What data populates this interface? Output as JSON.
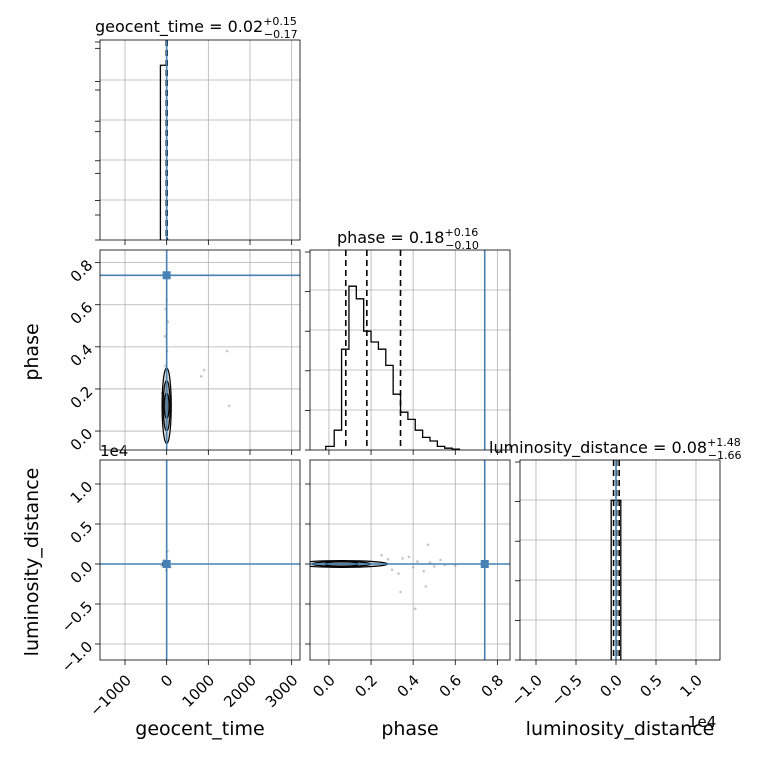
{
  "colors": {
    "truth": "#4682b4",
    "hist": "#000000",
    "grid": "#b0b0b0",
    "scatter": "#999999",
    "contour_fill": "#8c8c8c"
  },
  "chart_data": {
    "type": "corner",
    "grid": true,
    "parameters": [
      "geocent_time",
      "phase",
      "luminosity_distance"
    ],
    "ranges": {
      "geocent_time": [
        -1600,
        3200
      ],
      "phase": [
        -0.09,
        0.86
      ],
      "luminosity_distance": [
        -12000,
        13000
      ]
    },
    "truths": {
      "geocent_time": 0,
      "phase": 0.74,
      "luminosity_distance": 0
    },
    "titles": [
      {
        "param": "geocent_time",
        "prefix": "geocent_time = ",
        "value": "0.02",
        "plus": "+0.15",
        "minus": "−0.17"
      },
      {
        "param": "phase",
        "prefix": "phase = ",
        "value": "0.18",
        "plus": "+0.16",
        "minus": "−0.10"
      },
      {
        "param": "luminosity_distance",
        "prefix": "luminosity_distance = ",
        "value": "0.08",
        "plus": "+1.48",
        "minus": "−1.66"
      }
    ],
    "axis_labels": {
      "x": [
        "geocent_time",
        "phase",
        "luminosity_distance"
      ],
      "y": [
        "phase",
        "luminosity_distance"
      ]
    },
    "offset_labels": {
      "luminosity_distance_y": "1e4",
      "luminosity_distance_x": "1e4"
    },
    "ticks": {
      "geocent_time": {
        "values": [
          -1000,
          0,
          1000,
          2000,
          3000
        ],
        "labels": [
          "−1000",
          "0",
          "1000",
          "2000",
          "3000"
        ]
      },
      "phase": {
        "values": [
          0.0,
          0.2,
          0.4,
          0.6,
          0.8
        ],
        "labels": [
          "0.0",
          "0.2",
          "0.4",
          "0.6",
          "0.8"
        ]
      },
      "luminosity_distance": {
        "values": [
          -10000,
          -5000,
          0,
          5000,
          10000
        ],
        "labels": [
          "−1.0",
          "−0.5",
          "0.0",
          "0.5",
          "1.0"
        ]
      }
    },
    "quantile_lines": {
      "geocent_time": [
        -0.15,
        0.02,
        0.17
      ],
      "phase": [
        0.08,
        0.18,
        0.34
      ],
      "luminosity_distance": [
        -1.58,
        0.08,
        1.56
      ]
    },
    "histograms": {
      "geocent_time": {
        "edges": [
          -150,
          0,
          20
        ],
        "counts": [
          1.0,
          0.01
        ],
        "ymax": 1.03
      },
      "phase": {
        "edges": [
          -0.015,
          0.025,
          0.06,
          0.095,
          0.13,
          0.165,
          0.2,
          0.235,
          0.27,
          0.305,
          0.34,
          0.375,
          0.41,
          0.445,
          0.48,
          0.515,
          0.55,
          0.585,
          0.62
        ],
        "counts": [
          0.02,
          0.11,
          0.56,
          0.91,
          0.84,
          0.66,
          0.6,
          0.56,
          0.47,
          0.31,
          0.21,
          0.17,
          0.11,
          0.07,
          0.05,
          0.02,
          0.01,
          0.005
        ],
        "ymax": 1.0
      },
      "luminosity_distance": {
        "edges": [
          -600,
          0,
          600
        ],
        "counts": [
          0.55,
          0.55
        ],
        "ymax": 0.62
      }
    },
    "contours": {
      "geocent_time_phase": {
        "center": [
          0,
          0.12
        ],
        "halfwidths": [
          [
            55,
            0.06
          ],
          [
            85,
            0.12
          ],
          [
            110,
            0.18
          ]
        ]
      },
      "phase_luminosity_distance": {
        "center": [
          0.06,
          0
        ],
        "halfwidths": [
          [
            0.08,
            120
          ],
          [
            0.14,
            260
          ],
          [
            0.22,
            420
          ]
        ]
      },
      "geocent_time_luminosity_distance": {
        "center": [
          -20,
          0
        ],
        "halfwidths": [
          [
            40,
            150
          ],
          [
            60,
            280
          ],
          [
            80,
            380
          ]
        ]
      }
    },
    "scatter": {
      "geocent_time_phase": [
        [
          -60,
          0.05
        ],
        [
          40,
          0.25
        ],
        [
          -30,
          0.31
        ],
        [
          10,
          0.38
        ],
        [
          -45,
          0.45
        ],
        [
          25,
          0.52
        ],
        [
          -20,
          0.58
        ],
        [
          1450,
          0.38
        ],
        [
          1500,
          0.12
        ],
        [
          830,
          0.26
        ],
        [
          900,
          0.29
        ],
        [
          -110,
          0.18
        ],
        [
          70,
          0.09
        ],
        [
          0,
          0.62
        ]
      ],
      "phase_luminosity_distance": [
        [
          0.3,
          -700
        ],
        [
          0.35,
          700
        ],
        [
          0.4,
          -400
        ],
        [
          0.42,
          300
        ],
        [
          0.45,
          -900
        ],
        [
          0.48,
          200
        ],
        [
          0.5,
          -300
        ],
        [
          0.53,
          500
        ],
        [
          0.38,
          900
        ],
        [
          0.33,
          -1200
        ],
        [
          0.28,
          600
        ],
        [
          0.55,
          -100
        ],
        [
          0.46,
          -2800
        ],
        [
          0.34,
          -3500
        ],
        [
          0.41,
          -5600
        ],
        [
          0.47,
          2400
        ],
        [
          0.6,
          -200
        ],
        [
          0.25,
          1100
        ]
      ],
      "geocent_time_luminosity_distance": [
        [
          -120,
          -200
        ],
        [
          50,
          300
        ],
        [
          90,
          -400
        ],
        [
          -60,
          500
        ],
        [
          20,
          1600
        ],
        [
          -10,
          -800
        ]
      ]
    }
  }
}
